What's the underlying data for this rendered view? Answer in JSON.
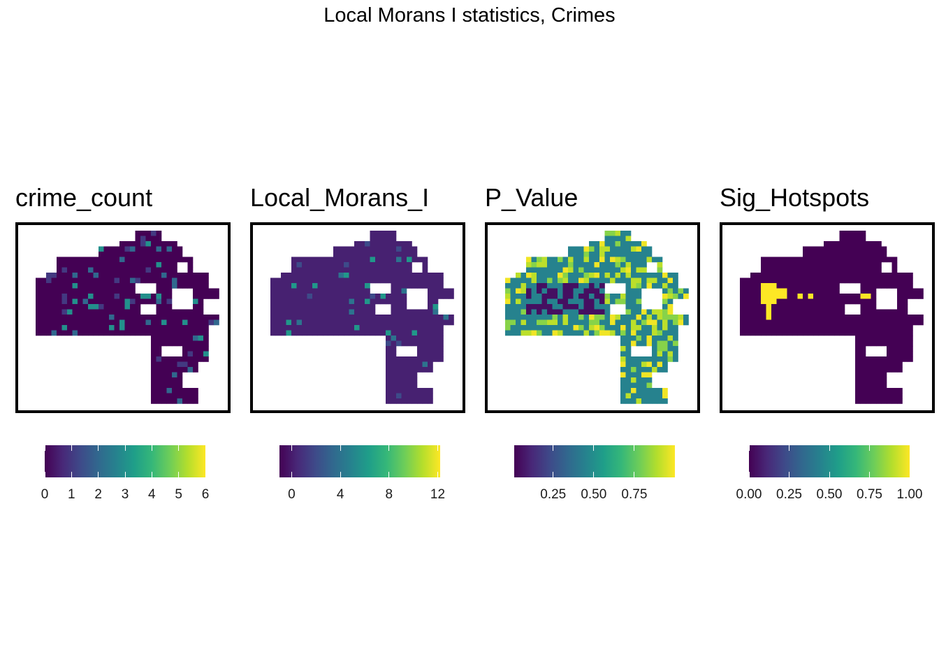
{
  "title": "Local Morans I statistics, Crimes",
  "palette": [
    "#440154",
    "#482878",
    "#3e4a89",
    "#31688e",
    "#26828e",
    "#1f9e89",
    "#35b779",
    "#6dcd59",
    "#b4de2c",
    "#fde725"
  ],
  "panels": [
    {
      "title": "crime_count",
      "legend": {
        "min": 0,
        "max": 6,
        "ticks": [
          0,
          1,
          2,
          3,
          4,
          5,
          6
        ],
        "labels": [
          "0",
          "1",
          "2",
          "3",
          "4",
          "5",
          "6"
        ]
      },
      "base_value": 0,
      "highlight_values": [
        1,
        2,
        3,
        6
      ],
      "highlight_density": 0.14
    },
    {
      "title": "Local_Morans_I",
      "legend": {
        "min": -1,
        "max": 12.2,
        "ticks": [
          0,
          4,
          8,
          12
        ],
        "labels": [
          "0",
          "4",
          "8",
          "12"
        ]
      },
      "base_value": 0.2,
      "highlight_values": [
        2,
        4,
        6,
        11.5
      ],
      "highlight_density": 0.05
    },
    {
      "title": "P_Value",
      "legend": {
        "min": 0.01,
        "max": 1.0,
        "ticks": [
          0.25,
          0.5,
          0.75
        ],
        "labels": [
          "0.25",
          "0.50",
          "0.75"
        ]
      },
      "base_value": 0.45,
      "highlight_values": [
        0.05,
        0.82,
        0.9,
        0.98
      ],
      "highlight_density": 0.35
    },
    {
      "title": "Sig_Hotspots",
      "legend": {
        "min": 0,
        "max": 1,
        "ticks": [
          0,
          0.25,
          0.5,
          0.75,
          1
        ],
        "labels": [
          "0.00",
          "0.25",
          "0.50",
          "0.75",
          "1.00"
        ]
      },
      "base_value": 0,
      "highlight_values": [
        1
      ],
      "highlight_density": 0.0
    }
  ]
}
